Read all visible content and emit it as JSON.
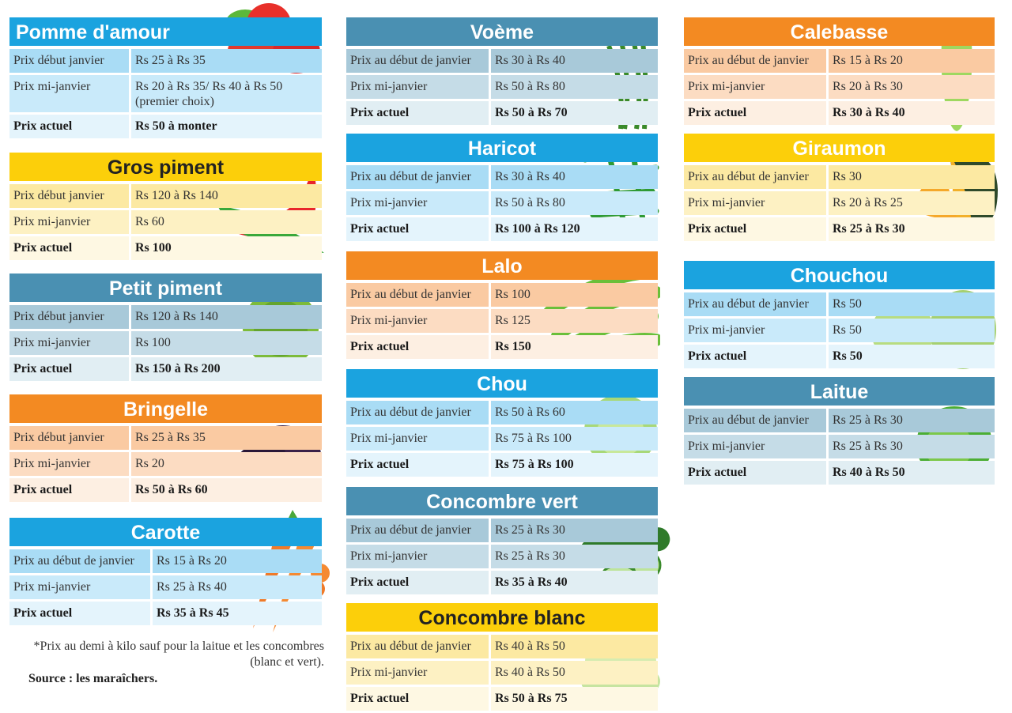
{
  "themes": {
    "blue": {
      "header": "#1ba3df",
      "rows": [
        "#a9dcf5",
        "#c9eafa",
        "#e4f4fc"
      ],
      "text": "#ffffff"
    },
    "yellow": {
      "header": "#fccf0a",
      "rows": [
        "#fce9a2",
        "#fdf1c3",
        "#fef8e3"
      ],
      "text": "#222222"
    },
    "yellow_white": {
      "header": "#fccf0a",
      "rows": [
        "#fce9a2",
        "#fdf1c3",
        "#fef8e3"
      ],
      "text": "#ffffff"
    },
    "orange": {
      "header": "#f38a22",
      "rows": [
        "#facaa2",
        "#fcdcc2",
        "#fdefe2"
      ],
      "text": "#ffffff"
    },
    "slate": {
      "header": "#4a90b2",
      "rows": [
        "#a8c9d9",
        "#c5dce7",
        "#e1eef3"
      ],
      "text": "#ffffff"
    }
  },
  "cards": [
    {
      "title": "Pomme d'amour",
      "theme": "blue",
      "icon": "tomato-icon",
      "rows": [
        [
          "Prix début janvier",
          "Rs 25 à Rs 35"
        ],
        [
          "Prix mi-janvier",
          "Rs 20 à Rs 35/ Rs 40 à Rs 50 (premier choix)"
        ],
        [
          "Prix actuel",
          "Rs 50 à monter"
        ]
      ]
    },
    {
      "title": "Gros piment",
      "theme": "yellow",
      "icon": "chili-pepper-icon",
      "rows": [
        [
          "Prix début janvier",
          "Rs 120 à Rs 140"
        ],
        [
          "Prix mi-janvier",
          "Rs 60"
        ],
        [
          "Prix actuel",
          "Rs 100"
        ]
      ]
    },
    {
      "title": "Petit piment",
      "theme": "slate",
      "icon": "small-chili-icon",
      "rows": [
        [
          "Prix début janvier",
          "Rs 120 à Rs 140"
        ],
        [
          "Prix mi-janvier",
          "Rs 100"
        ],
        [
          "Prix actuel",
          "Rs 150 à Rs 200"
        ]
      ]
    },
    {
      "title": "Bringelle",
      "theme": "orange",
      "icon": "eggplant-icon",
      "rows": [
        [
          "Prix début janvier",
          "Rs 25 à Rs 35"
        ],
        [
          "Prix mi-janvier",
          "Rs 20"
        ],
        [
          "Prix actuel",
          "Rs 50 à Rs 60"
        ]
      ]
    },
    {
      "title": "Carotte",
      "theme": "blue",
      "icon": "carrot-icon",
      "rows": [
        [
          "Prix au début de janvier",
          "Rs 15 à Rs 20"
        ],
        [
          "Prix mi-janvier",
          "Rs 25 à Rs 40"
        ],
        [
          "Prix actuel",
          "Rs 35 à Rs 45"
        ]
      ]
    },
    {
      "title": "Voème",
      "theme": "slate",
      "icon": "long-bean-icon",
      "rows": [
        [
          "Prix au début de janvier",
          "Rs 30 à Rs 40"
        ],
        [
          "Prix mi-janvier",
          "Rs 50 à Rs 80"
        ],
        [
          "Prix actuel",
          "Rs 50 à Rs 70"
        ]
      ]
    },
    {
      "title": "Haricot",
      "theme": "blue",
      "icon": "green-bean-icon",
      "rows": [
        [
          "Prix au début de janvier",
          "Rs 30 à Rs 40"
        ],
        [
          "Prix mi-janvier",
          "Rs 50 à Rs 80"
        ],
        [
          "Prix actuel",
          "Rs 100 à Rs 120"
        ]
      ]
    },
    {
      "title": "Lalo",
      "theme": "orange",
      "icon": "okra-icon",
      "rows": [
        [
          "Prix au début de janvier",
          "Rs 100"
        ],
        [
          "Prix mi-janvier",
          "Rs 125"
        ],
        [
          "Prix actuel",
          "Rs 150"
        ]
      ]
    },
    {
      "title": "Chou",
      "theme": "blue",
      "icon": "cabbage-icon",
      "rows": [
        [
          "Prix au début de janvier",
          "Rs 50 à Rs 60"
        ],
        [
          "Prix mi-janvier",
          "Rs 75 à Rs 100"
        ],
        [
          "Prix actuel",
          "Rs 75 à Rs 100"
        ]
      ]
    },
    {
      "title": "Concombre vert",
      "theme": "slate",
      "icon": "cucumber-icon",
      "rows": [
        [
          "Prix au début de janvier",
          "Rs 25 à Rs 30"
        ],
        [
          "Prix mi-janvier",
          "Rs 25 à Rs 30"
        ],
        [
          "Prix actuel",
          "Rs 35 à Rs 40"
        ]
      ]
    },
    {
      "title": "Concombre blanc",
      "theme": "yellow",
      "icon": "white-cucumber-icon",
      "rows": [
        [
          "Prix au début de janvier",
          "Rs 40 à Rs 50"
        ],
        [
          "Prix mi-janvier",
          "Rs 40 à Rs 50"
        ],
        [
          "Prix actuel",
          "Rs 50 à Rs 75"
        ]
      ]
    },
    {
      "title": "Calebasse",
      "theme": "orange",
      "icon": "gourd-icon",
      "rows": [
        [
          "Prix au début de janvier",
          "Rs 15 à Rs 20"
        ],
        [
          "Prix mi-janvier",
          "Rs 20 à Rs 30"
        ],
        [
          "Prix actuel",
          "Rs 30 à Rs 40"
        ]
      ]
    },
    {
      "title": "Giraumon",
      "theme": "yellow_white",
      "icon": "pumpkin-icon",
      "rows": [
        [
          "Prix au début de janvier",
          "Rs 30"
        ],
        [
          "Prix mi-janvier",
          "Rs 20 à Rs 25"
        ],
        [
          "Prix actuel",
          "Rs 25 à Rs 30"
        ]
      ]
    },
    {
      "title": "Chouchou",
      "theme": "blue",
      "icon": "chayote-icon",
      "rows": [
        [
          "Prix au début de janvier",
          "Rs 50"
        ],
        [
          "Prix mi-janvier",
          "Rs 50"
        ],
        [
          "Prix actuel",
          "Rs 50"
        ]
      ]
    },
    {
      "title": "Laitue",
      "theme": "slate",
      "icon": "lettuce-icon",
      "rows": [
        [
          "Prix au début de janvier",
          "Rs 25 à Rs 30"
        ],
        [
          "Prix mi-janvier",
          "Rs 25 à Rs 30"
        ],
        [
          "Prix actuel",
          "Rs 40 à Rs 50"
        ]
      ]
    }
  ],
  "footnote": "*Prix au demi à kilo sauf pour la laitue et les concombres (blanc et vert).",
  "source": "Source : les maraîchers."
}
